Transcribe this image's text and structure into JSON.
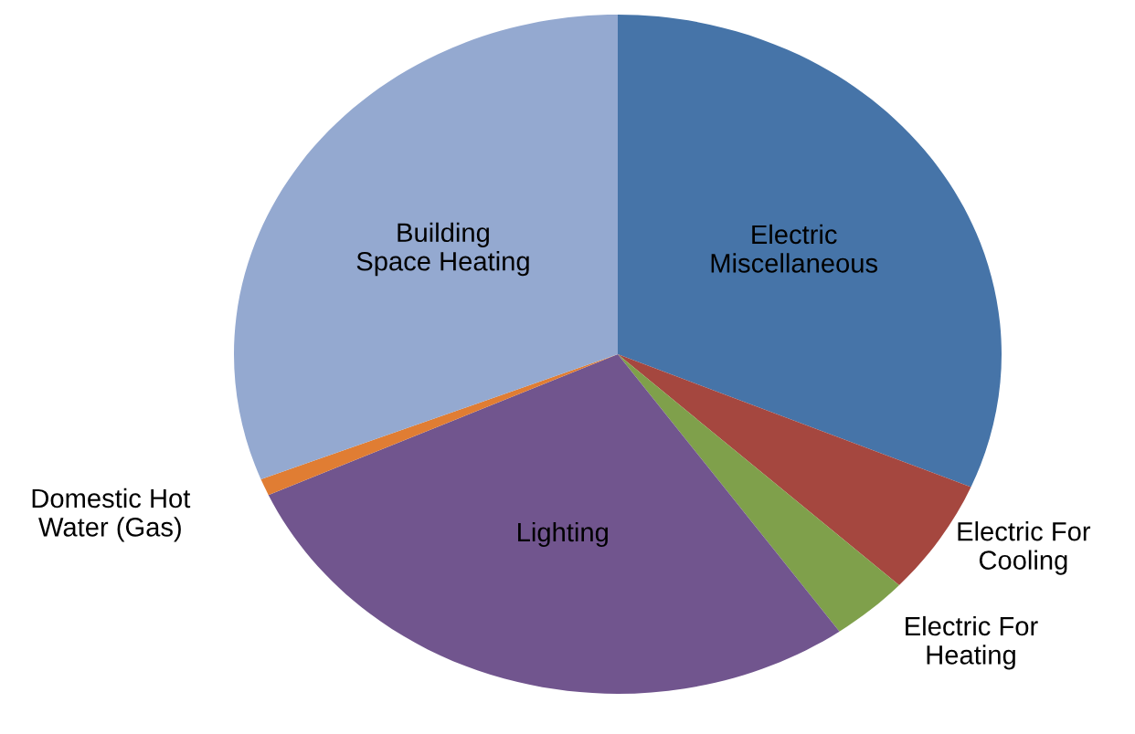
{
  "chart_data": {
    "type": "pie",
    "categories": [
      "Electric\nMiscellaneous",
      "Electric For\nCooling",
      "Electric For\nHeating",
      "Lighting",
      "Domestic Hot\nWater (Gas)",
      "Building\nSpace Heating"
    ],
    "values": [
      31.4,
      5.5,
      3.3,
      28.0,
      0.8,
      31.0
    ],
    "colors": [
      "#4674a8",
      "#a5473f",
      "#7fa04b",
      "#71558e",
      "#e07d33",
      "#94a9d0"
    ]
  }
}
